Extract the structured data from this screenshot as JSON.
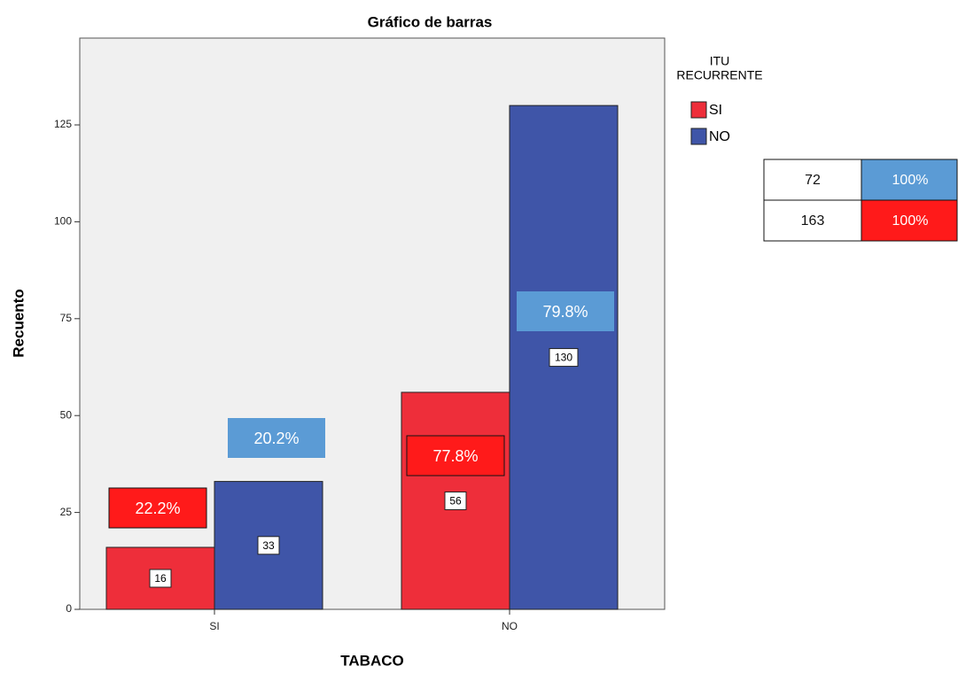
{
  "chart_data": {
    "type": "bar",
    "title": "Gráfico de barras",
    "x_label": "TABACO",
    "y_label": "Recuento",
    "categories": [
      "SI",
      "NO"
    ],
    "legend_title": [
      "ITU",
      "RECURRENTE"
    ],
    "series": [
      {
        "name": "SI",
        "color": "#ee2e3a",
        "values": [
          16,
          56
        ],
        "percent_labels": [
          "22.2%",
          "77.8%"
        ],
        "label_color": "#ff1a1a"
      },
      {
        "name": "NO",
        "color": "#3f55a8",
        "values": [
          33,
          130
        ],
        "percent_labels": [
          "20.2%",
          "79.8%"
        ],
        "label_color": "#5b9bd5"
      }
    ],
    "ylim": [
      0,
      147.4
    ],
    "yticks": [
      0,
      25,
      50,
      75,
      100,
      125
    ]
  },
  "table": {
    "rows": [
      [
        "72",
        "100%"
      ],
      [
        "163",
        "100%"
      ]
    ]
  }
}
